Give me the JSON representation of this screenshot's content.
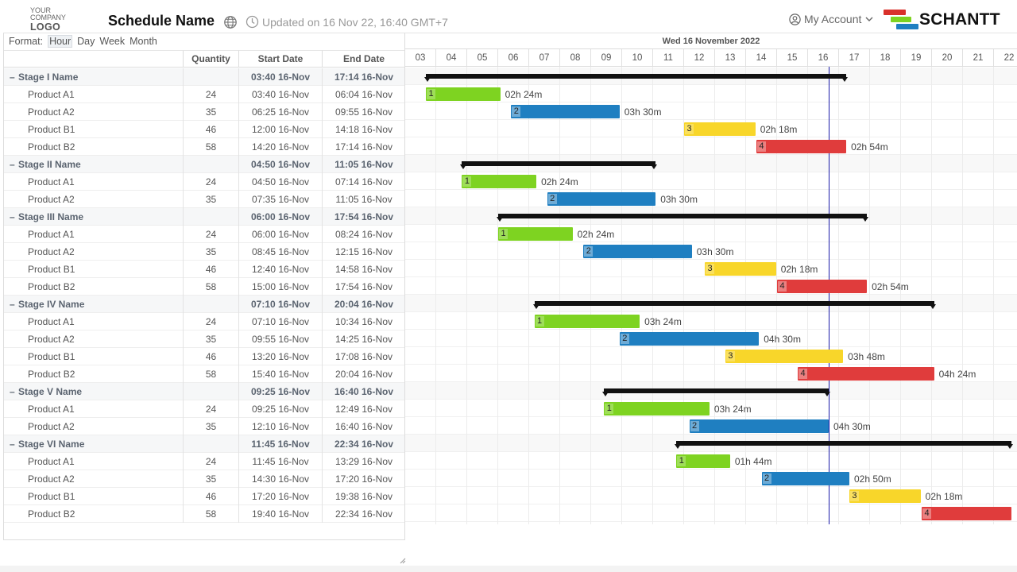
{
  "header": {
    "logo_line1": "YOUR COMPANY",
    "logo_line2": "LOGO HERE",
    "schedule_name": "Schedule Name",
    "updated": "Updated on 16 Nov 22, 16:40 GMT+7",
    "account_label": "My Account",
    "brand_name": "SCHANTT",
    "brand_colors": [
      "#d9312b",
      "#7ed321",
      "#1f7fc1"
    ]
  },
  "format": {
    "label": "Format:",
    "options": [
      "Hour",
      "Day",
      "Week",
      "Month"
    ],
    "active": "Hour"
  },
  "columns": {
    "quantity": "Quantity",
    "start": "Start Date",
    "end": "End Date"
  },
  "timeline": {
    "date_label": "Wed 16 November 2022",
    "hours": [
      "03",
      "04",
      "05",
      "06",
      "07",
      "08",
      "09",
      "10",
      "11",
      "12",
      "13",
      "14",
      "15",
      "16",
      "17",
      "18",
      "19",
      "20",
      "21",
      "22"
    ],
    "start_hour": 3,
    "now_hour": 16.6667,
    "colors": {
      "1": "#7ed321",
      "2": "#1f7fc1",
      "3": "#f8d62a",
      "4": "#e03c3c"
    },
    "summary_color": "#111111",
    "now_line_color": "#1a1aa8"
  },
  "rows": [
    {
      "type": "stage",
      "name": "Stage I Name",
      "start": "03:40 16-Nov",
      "end": "17:14 16-Nov",
      "s": 3.667,
      "e": 17.233
    },
    {
      "type": "product",
      "name": "Product A1",
      "qty": "24",
      "start": "03:40 16-Nov",
      "end": "06:04 16-Nov",
      "s": 3.667,
      "e": 6.067,
      "idx": "1",
      "dur": "02h 24m"
    },
    {
      "type": "product",
      "name": "Product A2",
      "qty": "35",
      "start": "06:25 16-Nov",
      "end": "09:55 16-Nov",
      "s": 6.417,
      "e": 9.917,
      "idx": "2",
      "dur": "03h 30m"
    },
    {
      "type": "product",
      "name": "Product B1",
      "qty": "46",
      "start": "12:00 16-Nov",
      "end": "14:18 16-Nov",
      "s": 12.0,
      "e": 14.3,
      "idx": "3",
      "dur": "02h 18m"
    },
    {
      "type": "product",
      "name": "Product B2",
      "qty": "58",
      "start": "14:20 16-Nov",
      "end": "17:14 16-Nov",
      "s": 14.333,
      "e": 17.233,
      "idx": "4",
      "dur": "02h 54m"
    },
    {
      "type": "stage",
      "name": "Stage II Name",
      "start": "04:50 16-Nov",
      "end": "11:05 16-Nov",
      "s": 4.833,
      "e": 11.083
    },
    {
      "type": "product",
      "name": "Product A1",
      "qty": "24",
      "start": "04:50 16-Nov",
      "end": "07:14 16-Nov",
      "s": 4.833,
      "e": 7.233,
      "idx": "1",
      "dur": "02h 24m"
    },
    {
      "type": "product",
      "name": "Product A2",
      "qty": "35",
      "start": "07:35 16-Nov",
      "end": "11:05 16-Nov",
      "s": 7.583,
      "e": 11.083,
      "idx": "2",
      "dur": "03h 30m"
    },
    {
      "type": "stage",
      "name": "Stage III Name",
      "start": "06:00 16-Nov",
      "end": "17:54 16-Nov",
      "s": 6.0,
      "e": 17.9
    },
    {
      "type": "product",
      "name": "Product A1",
      "qty": "24",
      "start": "06:00 16-Nov",
      "end": "08:24 16-Nov",
      "s": 6.0,
      "e": 8.4,
      "idx": "1",
      "dur": "02h 24m"
    },
    {
      "type": "product",
      "name": "Product A2",
      "qty": "35",
      "start": "08:45 16-Nov",
      "end": "12:15 16-Nov",
      "s": 8.75,
      "e": 12.25,
      "idx": "2",
      "dur": "03h 30m"
    },
    {
      "type": "product",
      "name": "Product B1",
      "qty": "46",
      "start": "12:40 16-Nov",
      "end": "14:58 16-Nov",
      "s": 12.667,
      "e": 14.967,
      "idx": "3",
      "dur": "02h 18m"
    },
    {
      "type": "product",
      "name": "Product B2",
      "qty": "58",
      "start": "15:00 16-Nov",
      "end": "17:54 16-Nov",
      "s": 15.0,
      "e": 17.9,
      "idx": "4",
      "dur": "02h 54m"
    },
    {
      "type": "stage",
      "name": "Stage IV Name",
      "start": "07:10 16-Nov",
      "end": "20:04 16-Nov",
      "s": 7.167,
      "e": 20.067
    },
    {
      "type": "product",
      "name": "Product A1",
      "qty": "24",
      "start": "07:10 16-Nov",
      "end": "10:34 16-Nov",
      "s": 7.167,
      "e": 10.567,
      "idx": "1",
      "dur": "03h 24m"
    },
    {
      "type": "product",
      "name": "Product A2",
      "qty": "35",
      "start": "09:55 16-Nov",
      "end": "14:25 16-Nov",
      "s": 9.917,
      "e": 14.417,
      "idx": "2",
      "dur": "04h 30m"
    },
    {
      "type": "product",
      "name": "Product B1",
      "qty": "46",
      "start": "13:20 16-Nov",
      "end": "17:08 16-Nov",
      "s": 13.333,
      "e": 17.133,
      "idx": "3",
      "dur": "03h 48m"
    },
    {
      "type": "product",
      "name": "Product B2",
      "qty": "58",
      "start": "15:40 16-Nov",
      "end": "20:04 16-Nov",
      "s": 15.667,
      "e": 20.067,
      "idx": "4",
      "dur": "04h 24m"
    },
    {
      "type": "stage",
      "name": "Stage V Name",
      "start": "09:25 16-Nov",
      "end": "16:40 16-Nov",
      "s": 9.417,
      "e": 16.667
    },
    {
      "type": "product",
      "name": "Product A1",
      "qty": "24",
      "start": "09:25 16-Nov",
      "end": "12:49 16-Nov",
      "s": 9.417,
      "e": 12.817,
      "idx": "1",
      "dur": "03h 24m"
    },
    {
      "type": "product",
      "name": "Product A2",
      "qty": "35",
      "start": "12:10 16-Nov",
      "end": "16:40 16-Nov",
      "s": 12.167,
      "e": 16.667,
      "idx": "2",
      "dur": "04h 30m"
    },
    {
      "type": "stage",
      "name": "Stage VI Name",
      "start": "11:45 16-Nov",
      "end": "22:34 16-Nov",
      "s": 11.75,
      "e": 22.567
    },
    {
      "type": "product",
      "name": "Product A1",
      "qty": "24",
      "start": "11:45 16-Nov",
      "end": "13:29 16-Nov",
      "s": 11.75,
      "e": 13.483,
      "idx": "1",
      "dur": "01h 44m"
    },
    {
      "type": "product",
      "name": "Product A2",
      "qty": "35",
      "start": "14:30 16-Nov",
      "end": "17:20 16-Nov",
      "s": 14.5,
      "e": 17.333,
      "idx": "2",
      "dur": "02h 50m"
    },
    {
      "type": "product",
      "name": "Product B1",
      "qty": "46",
      "start": "17:20 16-Nov",
      "end": "19:38 16-Nov",
      "s": 17.333,
      "e": 19.633,
      "idx": "3",
      "dur": "02h 18m"
    },
    {
      "type": "product",
      "name": "Product B2",
      "qty": "58",
      "start": "19:40 16-Nov",
      "end": "22:34 16-Nov",
      "s": 19.667,
      "e": 22.567,
      "idx": "4",
      "dur": ""
    }
  ]
}
